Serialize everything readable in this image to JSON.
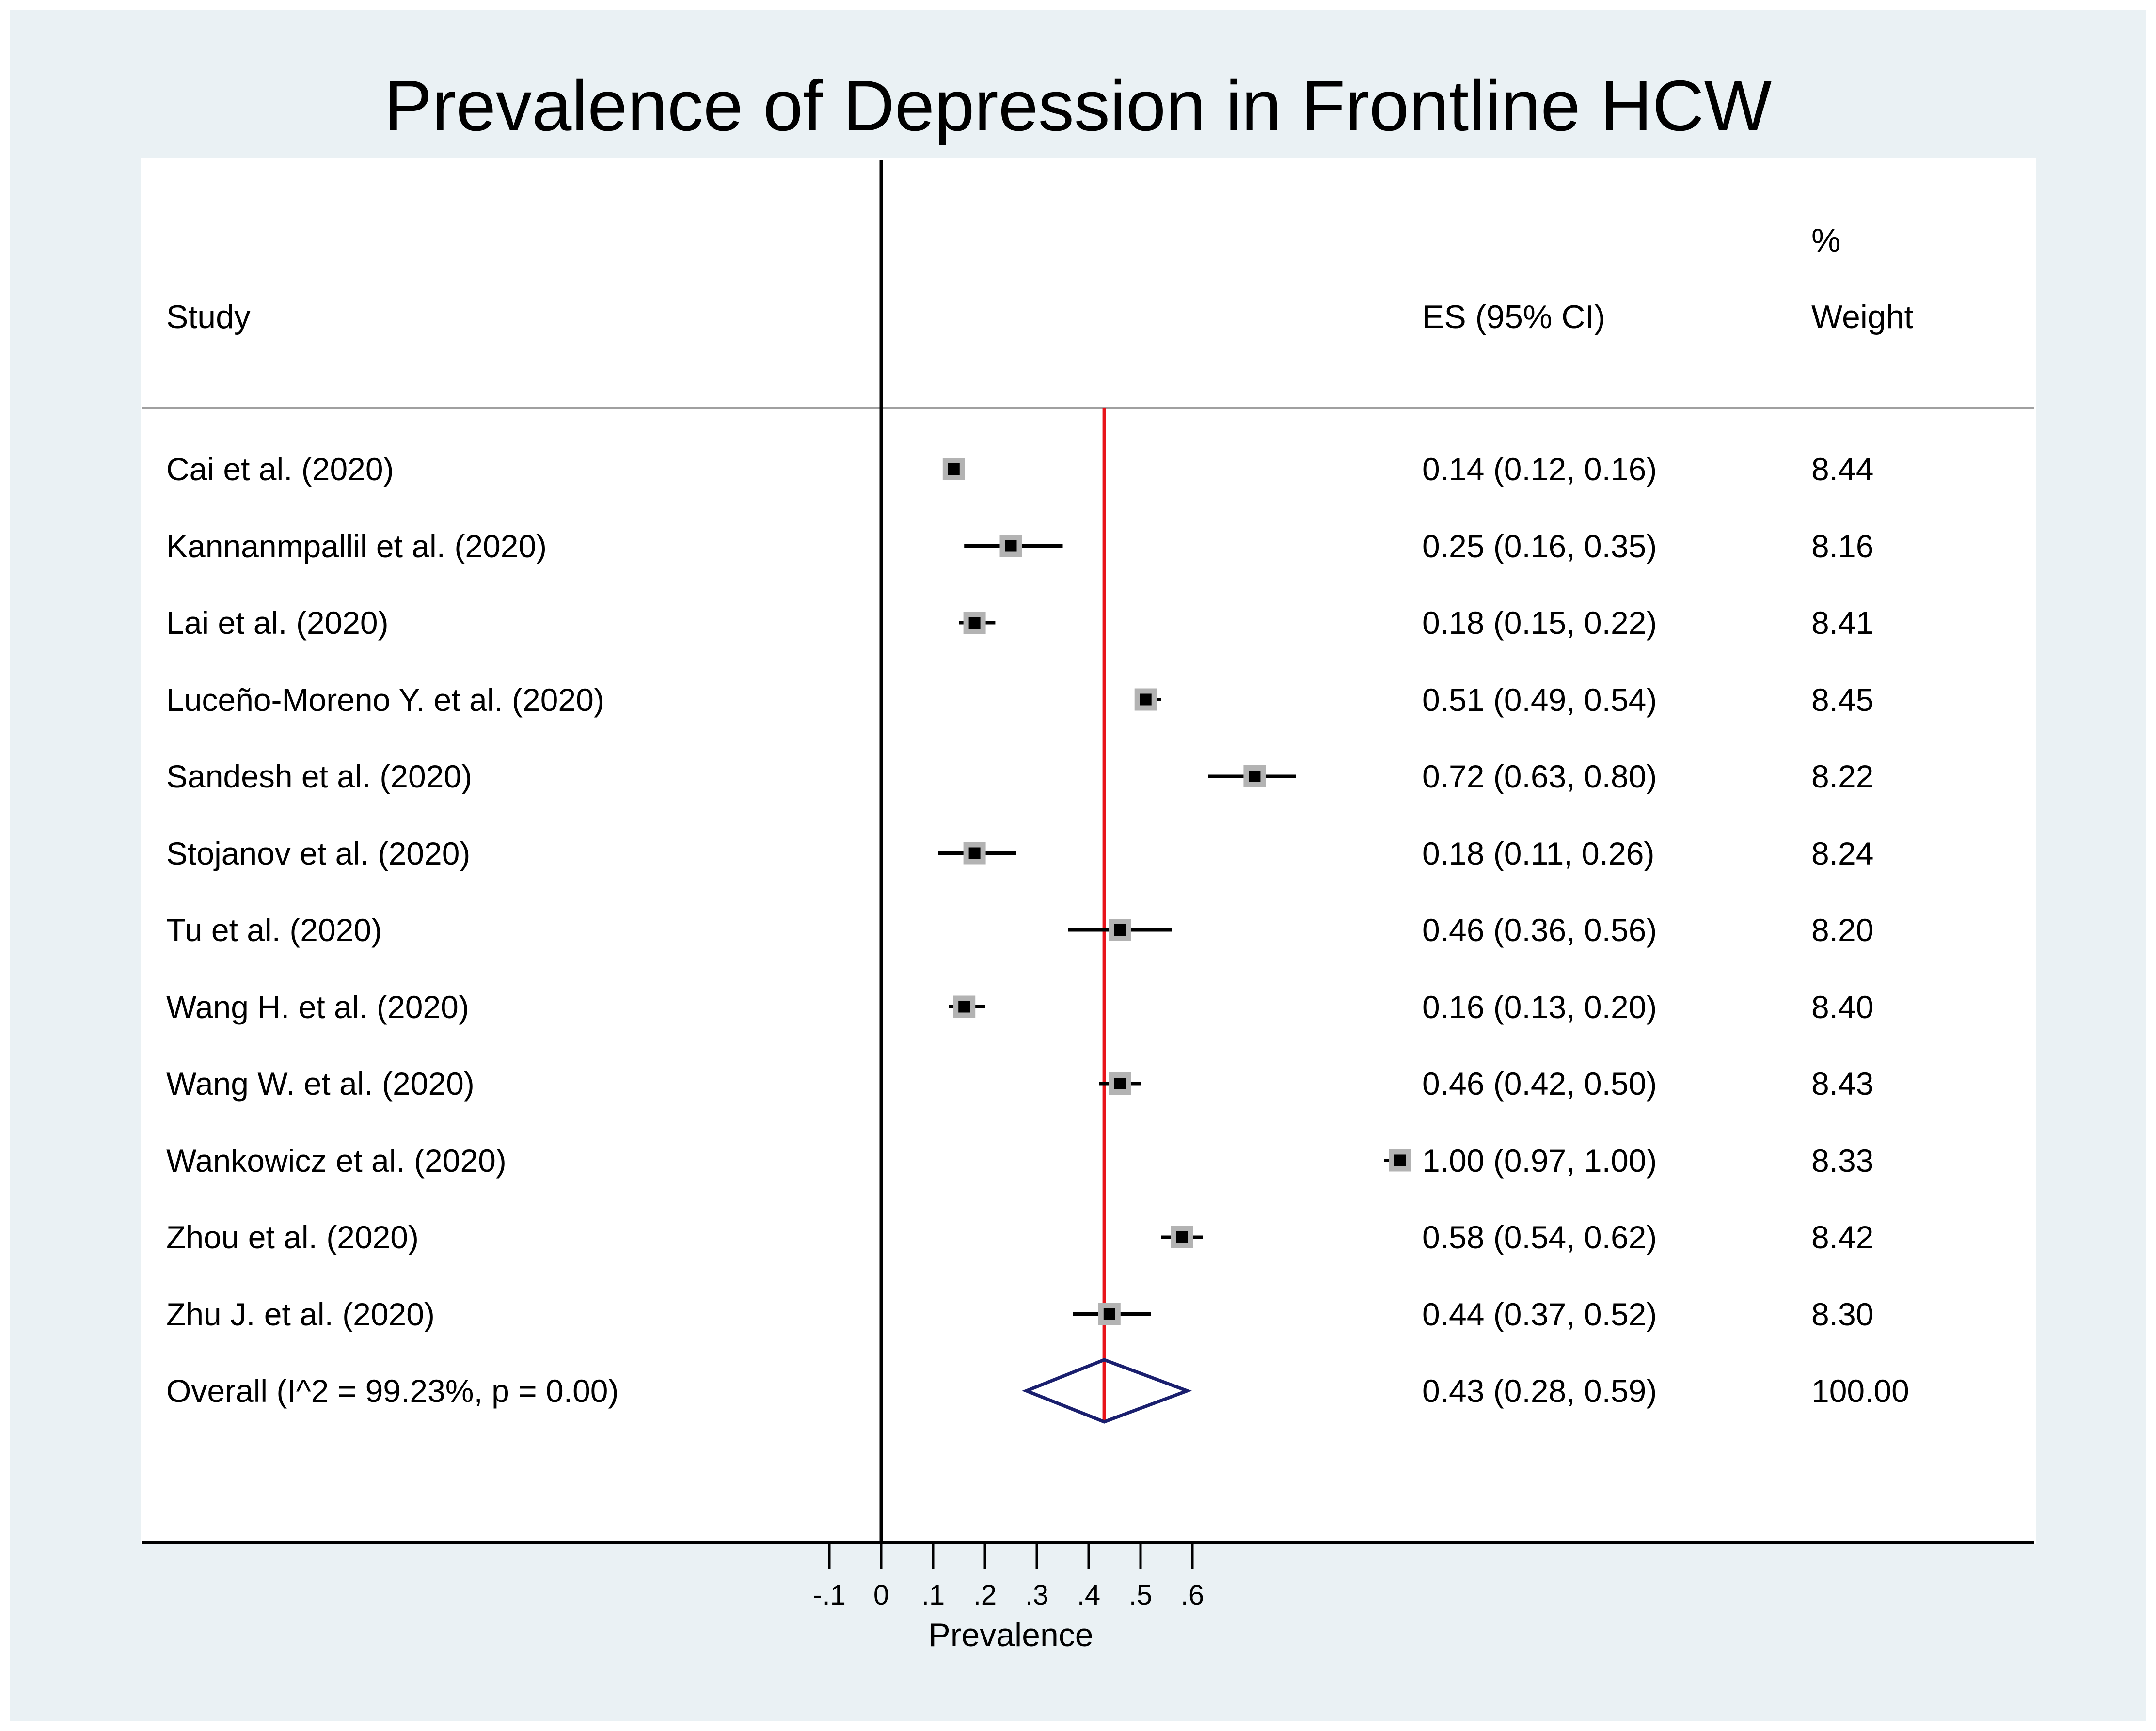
{
  "chart_data": {
    "type": "forest",
    "title": "Prevalence of Depression in Frontline HCW",
    "xlabel": "Prevalence",
    "xticks": [
      -0.1,
      0,
      0.1,
      0.2,
      0.3,
      0.4,
      0.5,
      0.6
    ],
    "xtick_labels": [
      "-.1",
      "0",
      ".1",
      ".2",
      ".3",
      ".4",
      ".5",
      ".6"
    ],
    "headers": {
      "study": "Study",
      "es": "ES (95% CI)",
      "weight_top": "%",
      "weight_bottom": "Weight"
    },
    "studies": [
      {
        "name": "Cai et al. (2020)",
        "es": 0.14,
        "lo": 0.12,
        "hi": 0.16,
        "es_text": "0.14 (0.12, 0.16)",
        "weight": "8.44"
      },
      {
        "name": "Kannanmpallil et al. (2020)",
        "es": 0.25,
        "lo": 0.16,
        "hi": 0.35,
        "es_text": "0.25 (0.16, 0.35)",
        "weight": "8.16"
      },
      {
        "name": "Lai et al. (2020)",
        "es": 0.18,
        "lo": 0.15,
        "hi": 0.22,
        "es_text": "0.18 (0.15, 0.22)",
        "weight": "8.41"
      },
      {
        "name": "Luceño-Moreno Y. et al. (2020)",
        "es": 0.51,
        "lo": 0.49,
        "hi": 0.54,
        "es_text": "0.51 (0.49, 0.54)",
        "weight": "8.45"
      },
      {
        "name": "Sandesh et al. (2020)",
        "es": 0.72,
        "lo": 0.63,
        "hi": 0.8,
        "es_text": "0.72 (0.63, 0.80)",
        "weight": "8.22"
      },
      {
        "name": "Stojanov et al. (2020)",
        "es": 0.18,
        "lo": 0.11,
        "hi": 0.26,
        "es_text": "0.18 (0.11, 0.26)",
        "weight": "8.24"
      },
      {
        "name": "Tu et al. (2020)",
        "es": 0.46,
        "lo": 0.36,
        "hi": 0.56,
        "es_text": "0.46 (0.36, 0.56)",
        "weight": "8.20"
      },
      {
        "name": "Wang H. et al. (2020)",
        "es": 0.16,
        "lo": 0.13,
        "hi": 0.2,
        "es_text": "0.16 (0.13, 0.20)",
        "weight": "8.40"
      },
      {
        "name": "Wang W. et al. (2020)",
        "es": 0.46,
        "lo": 0.42,
        "hi": 0.5,
        "es_text": "0.46 (0.42, 0.50)",
        "weight": "8.43"
      },
      {
        "name": "Wankowicz et al. (2020)",
        "es": 1.0,
        "lo": 0.97,
        "hi": 1.0,
        "es_text": "1.00 (0.97, 1.00)",
        "weight": "8.33"
      },
      {
        "name": "Zhou et al. (2020)",
        "es": 0.58,
        "lo": 0.54,
        "hi": 0.62,
        "es_text": "0.58 (0.54, 0.62)",
        "weight": "8.42"
      },
      {
        "name": "Zhu J. et al. (2020)",
        "es": 0.44,
        "lo": 0.37,
        "hi": 0.52,
        "es_text": "0.44 (0.37, 0.52)",
        "weight": "8.30"
      }
    ],
    "overall": {
      "name": "Overall  (I^2 = 99.23%, p = 0.00)",
      "es": 0.43,
      "lo": 0.28,
      "hi": 0.59,
      "es_text": "0.43 (0.28, 0.59)",
      "weight": "100.00"
    },
    "null_line": 0,
    "colors": {
      "background": "#eaf1f4",
      "panel": "#ffffff",
      "marker": "#000000",
      "marker_box": "#b3b3b3",
      "overall_line": "#e8141b",
      "diamond": "#1a1f6e",
      "separator": "#a0a0a0"
    }
  }
}
